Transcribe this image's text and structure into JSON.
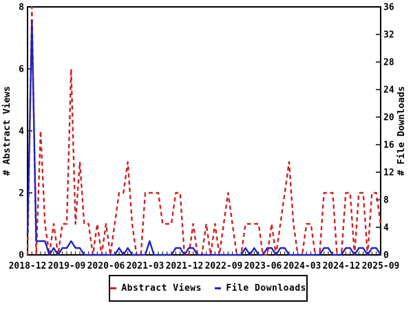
{
  "chart_data": {
    "type": "line",
    "title": "",
    "x_tick_labels": [
      "2018-12",
      "2019-09",
      "2020-06",
      "2021-03",
      "2021-12",
      "2022-09",
      "2023-06",
      "2024-03",
      "2024-12",
      "2025-09"
    ],
    "x_tick_step_months": 9,
    "left_axis": {
      "label": "# Abstract Views",
      "min": 0,
      "max": 8,
      "tick_step": 2,
      "ticks": [
        0,
        2,
        4,
        6,
        8
      ]
    },
    "right_axis": {
      "label": "# File Downloads",
      "min": 0,
      "max": 36,
      "tick_step": 4,
      "ticks": [
        0,
        4,
        8,
        12,
        16,
        20,
        24,
        28,
        32,
        36
      ]
    },
    "series": [
      {
        "name": "Abstract Views",
        "axis": "left",
        "style": "dashed",
        "color": "#cc2222",
        "values": [
          0,
          8,
          0,
          4,
          1,
          0,
          1,
          0,
          1,
          1,
          6,
          1,
          3,
          1,
          1,
          0,
          1,
          0,
          1,
          0,
          1,
          2,
          2,
          3,
          1,
          0,
          0,
          2,
          2,
          2,
          2,
          1,
          1,
          1,
          2,
          2,
          0,
          0,
          1,
          0,
          0,
          1,
          0,
          1,
          0,
          1,
          2,
          1,
          0,
          0,
          1,
          1,
          1,
          1,
          0,
          0,
          1,
          0,
          1,
          2,
          3,
          1,
          0,
          0,
          1,
          1,
          0,
          0,
          2,
          2,
          2,
          0,
          0,
          2,
          2,
          0,
          2,
          2,
          0,
          2,
          2,
          1
        ]
      },
      {
        "name": "File Downloads",
        "axis": "right",
        "style": "solid",
        "color": "#2222bb",
        "values": [
          3,
          34,
          2,
          2,
          2,
          0,
          1,
          0,
          1,
          1,
          2,
          1,
          1,
          0,
          0,
          0,
          0,
          0,
          0,
          0,
          0,
          1,
          0,
          1,
          0,
          0,
          0,
          0,
          2,
          0,
          0,
          0,
          0,
          0,
          1,
          1,
          0,
          1,
          1,
          0,
          0,
          0,
          0,
          0,
          0,
          0,
          0,
          0,
          0,
          0,
          1,
          0,
          1,
          0,
          0,
          1,
          1,
          0,
          1,
          1,
          0,
          0,
          0,
          0,
          0,
          0,
          0,
          0,
          1,
          1,
          0,
          0,
          0,
          1,
          1,
          0,
          1,
          1,
          0,
          1,
          1,
          0
        ]
      }
    ],
    "legend": {
      "position": "bottom-center",
      "entries": [
        "Abstract Views",
        "File Downloads"
      ]
    }
  },
  "colors": {
    "red": "#cc2222",
    "blue": "#2222bb",
    "frame": "#000000",
    "background": "#ffffff"
  }
}
